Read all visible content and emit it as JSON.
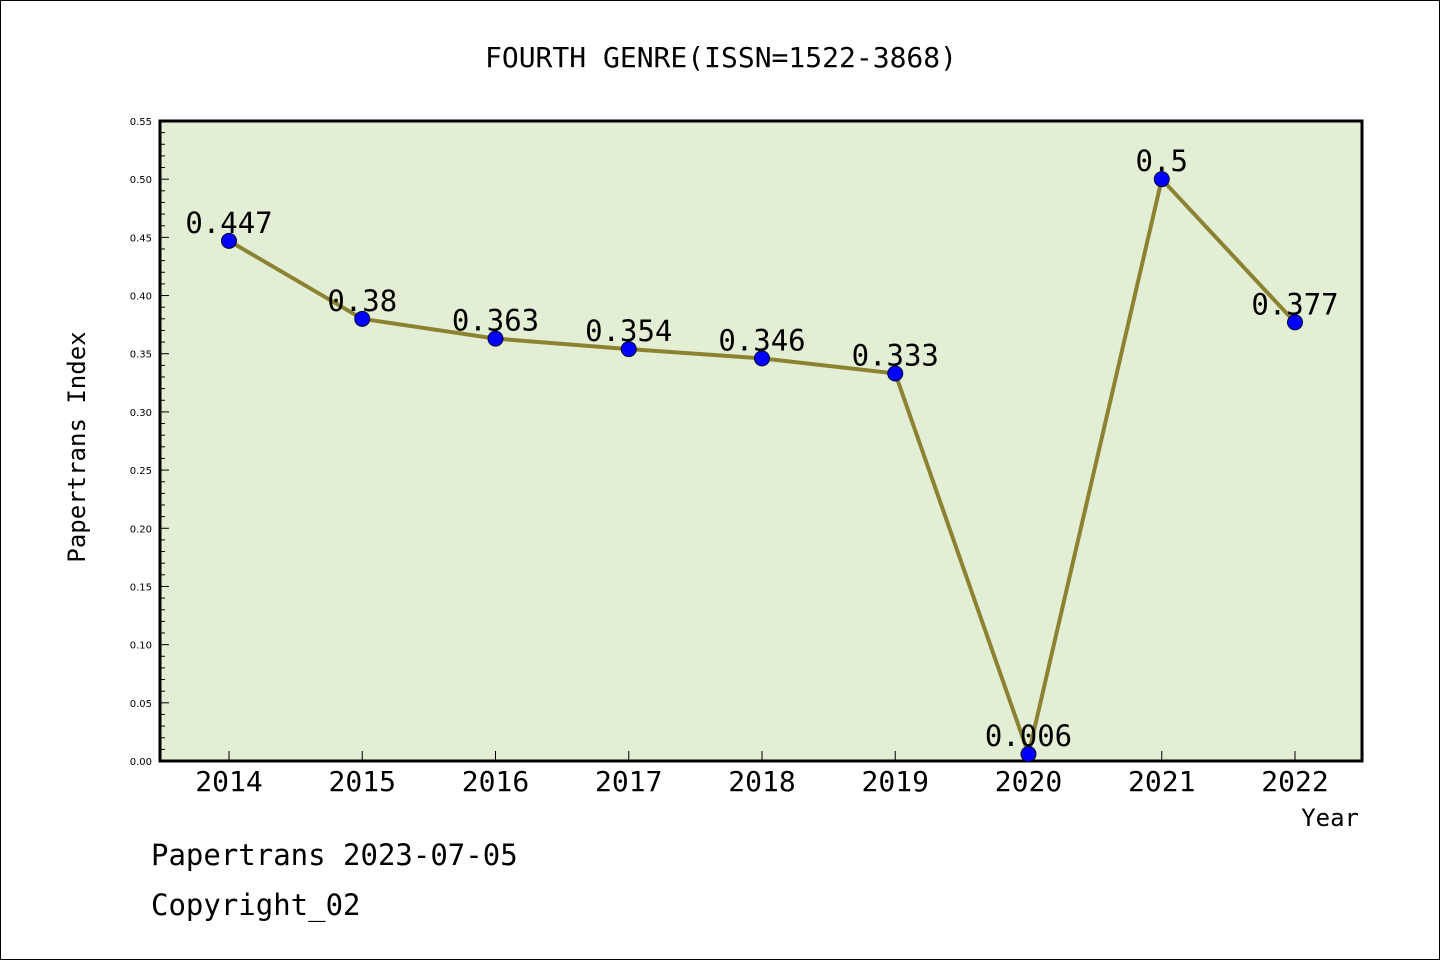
{
  "chart_data": {
    "type": "line",
    "title": "FOURTH GENRE(ISSN=1522-3868)",
    "xlabel": "Year",
    "ylabel": "Papertrans Index",
    "categories": [
      "2014",
      "2015",
      "2016",
      "2017",
      "2018",
      "2019",
      "2020",
      "2021",
      "2022"
    ],
    "series": [
      {
        "values": [
          0.447,
          0.38,
          0.363,
          0.354,
          0.346,
          0.333,
          0.006,
          0.5,
          0.377
        ],
        "labels": [
          "0.447",
          "0.38",
          "0.363",
          "0.354",
          "0.346",
          "0.333",
          "0.006",
          "0.5",
          "0.377"
        ],
        "line_color": "#8c8232",
        "marker_color": "#0000ff"
      }
    ],
    "ylim": [
      0,
      0.55
    ],
    "yticks": [
      "0.00",
      "0.05",
      "0.10",
      "0.15",
      "0.20",
      "0.25",
      "0.30",
      "0.35",
      "0.40",
      "0.45",
      "0.50",
      "0.55"
    ],
    "plot_background": "#e2efd5",
    "grid": false,
    "legend": "none"
  },
  "footer": {
    "line1": "Papertrans 2023-07-05",
    "line2": "Copyright_02"
  }
}
